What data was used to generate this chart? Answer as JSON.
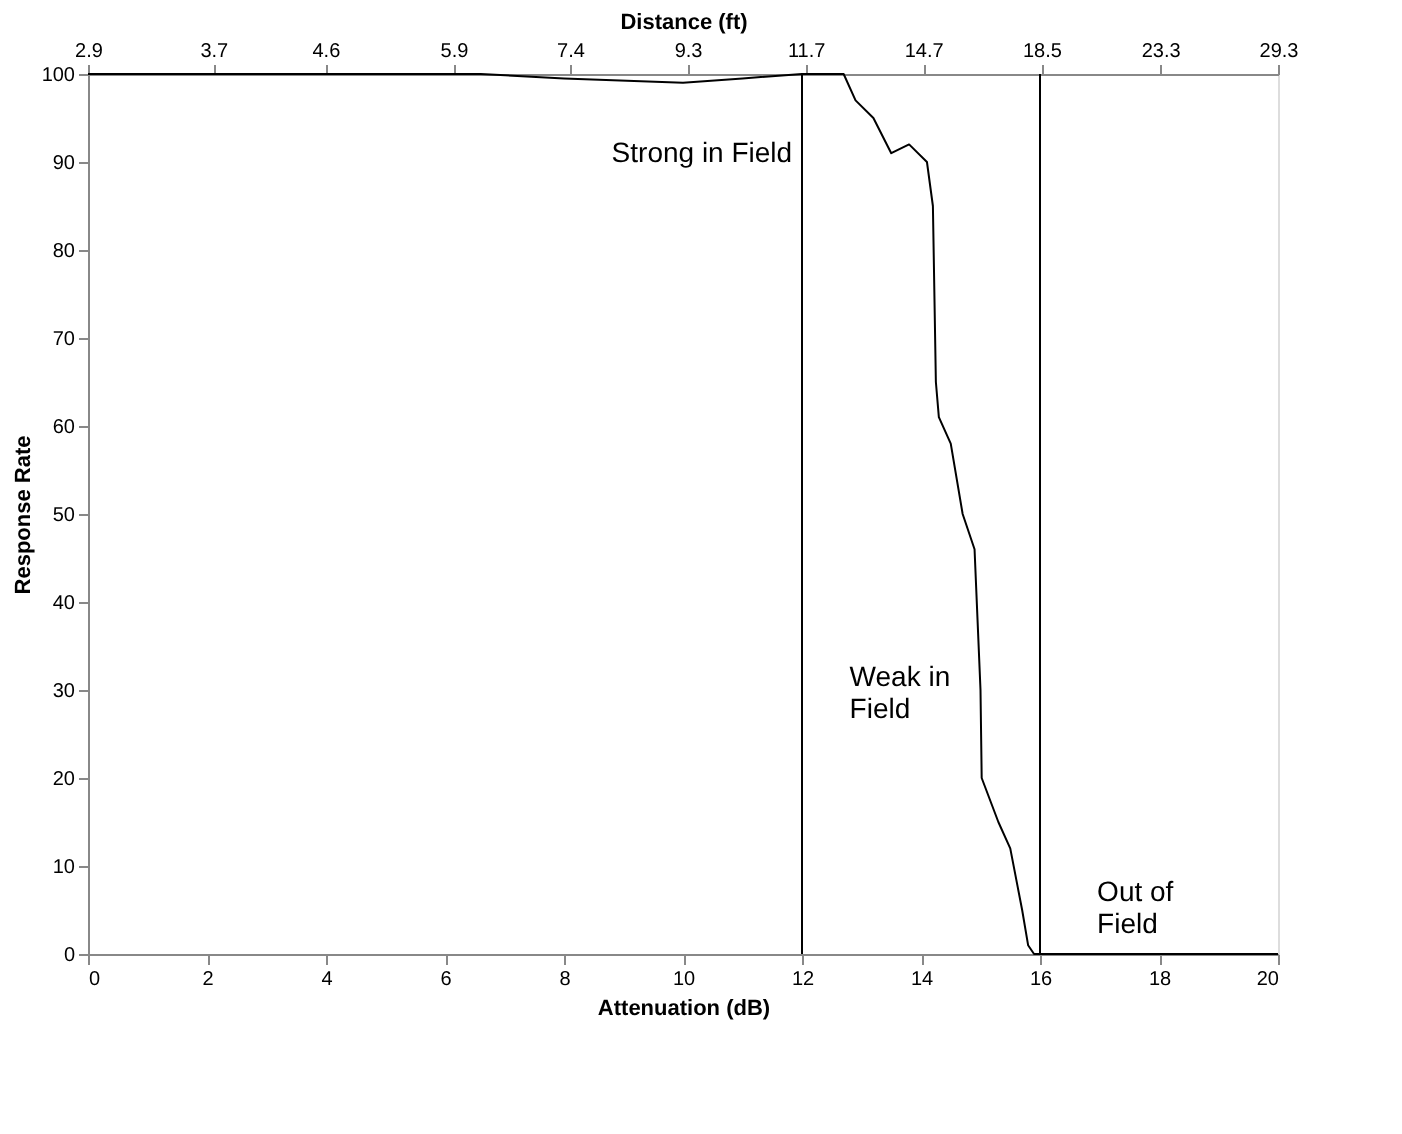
{
  "chart_data": {
    "type": "line",
    "xlabel": "Attenuation (dB)",
    "ylabel": "Response Rate",
    "x2label": "Distance (ft)",
    "xlim": [
      0,
      20
    ],
    "xticks": [
      0,
      2,
      4,
      6,
      8,
      10,
      12,
      14,
      16,
      18,
      20
    ],
    "x2lim": [
      2.9,
      29.3
    ],
    "x2ticks": [
      2.9,
      3.7,
      4.6,
      5.9,
      7.4,
      9.3,
      11.7,
      14.7,
      18.5,
      23.3,
      29.3
    ],
    "log": "x2",
    "ylim": [
      0,
      100
    ],
    "yticks": [
      0,
      10,
      20,
      30,
      40,
      50,
      60,
      70,
      80,
      90,
      100
    ],
    "grid": false,
    "series": [
      {
        "color": "#000000",
        "x": [
          0,
          2,
          4,
          6.6,
          8,
          10,
          11,
          12,
          12.7,
          12.9,
          13.2,
          13.5,
          13.8,
          14.1,
          14.2,
          14.25,
          14.3,
          14.5,
          14.7,
          14.9,
          14.95,
          15.0,
          15.02,
          15.3,
          15.5,
          15.7,
          15.8,
          15.9,
          16,
          18,
          20
        ],
        "values": [
          100,
          100,
          100,
          100,
          99.5,
          99,
          99.5,
          100,
          100,
          97,
          95,
          91,
          92,
          90,
          85,
          65,
          61,
          58,
          50,
          46,
          38,
          30,
          20,
          15,
          12,
          5,
          1,
          0,
          0,
          0,
          0
        ]
      }
    ],
    "ref_lines": [
      {
        "axis": "x",
        "value": 12,
        "color": "#000000"
      },
      {
        "axis": "x",
        "value": 16,
        "color": "#000000"
      }
    ],
    "annotations": [
      "Strong in Field",
      "Weak in Field",
      "Out of Field"
    ]
  }
}
